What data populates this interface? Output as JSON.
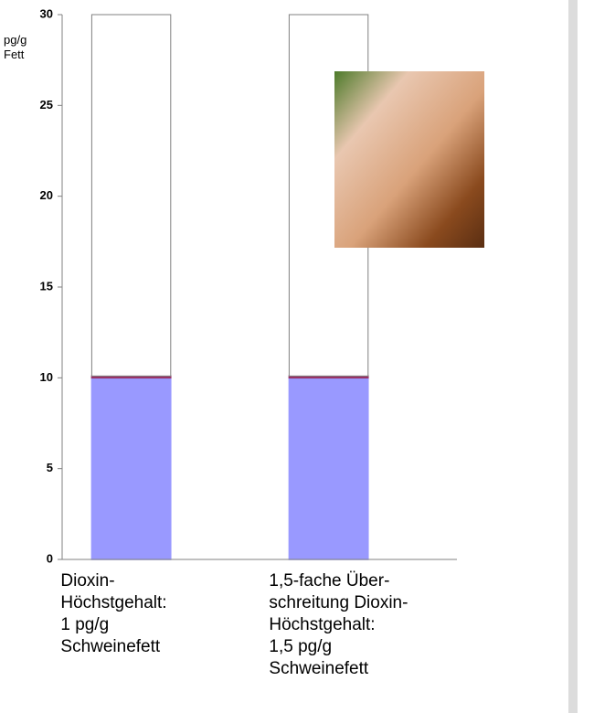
{
  "chart_data": {
    "type": "stacked_bar",
    "y_label": "pg/g\nFett",
    "categories": [
      "Dioxin-\nHöchstgehalt:\n1 pg/g\nSchweinefett",
      "1,5-fache Über-\nschreitung Dioxin-\nHöchstgehalt:\n1,5 pg/g\nSchweinefett"
    ],
    "series": [
      {
        "color": "#9999ff",
        "values": [
          10,
          10
        ]
      },
      {
        "color": "#993366",
        "values": [
          0.1,
          0.1
        ]
      },
      {
        "color": "#ffffff",
        "values": [
          19.9,
          19.9
        ]
      }
    ],
    "ylim": [
      0,
      30
    ],
    "yticks": [
      0,
      5,
      10,
      15,
      20,
      25,
      30
    ]
  }
}
